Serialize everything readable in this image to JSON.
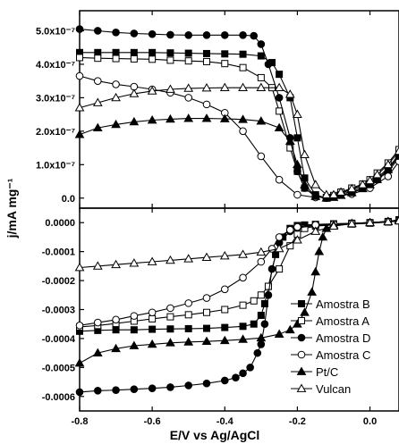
{
  "chart_data": [
    {
      "type": "line",
      "panel": "top",
      "xlabel": "E/V vs Ag/AgCl",
      "ylabel": "j/mA mg⁻¹",
      "xlim": [
        -0.8,
        0.08
      ],
      "ylim": [
        -3e-08,
        5.6e-07
      ],
      "y_ticks": [
        0,
        1e-07,
        2e-07,
        3e-07,
        4e-07,
        5e-07
      ],
      "y_tick_labels": [
        "0.0",
        "1.0x10⁻⁷",
        "2.0x10⁻⁷",
        "3.0x10⁻⁷",
        "4.0x10⁻⁷",
        "5.0x10⁻⁷"
      ],
      "series": [
        {
          "name": "Amostra B",
          "marker": "square-filled",
          "x": [
            -0.8,
            -0.75,
            -0.7,
            -0.65,
            -0.6,
            -0.55,
            -0.5,
            -0.45,
            -0.4,
            -0.35,
            -0.3,
            -0.27,
            -0.25,
            -0.22,
            -0.2,
            -0.18,
            -0.15,
            -0.12,
            -0.1,
            -0.08,
            -0.05,
            -0.02,
            0.0,
            0.02,
            0.05,
            0.08
          ],
          "y": [
            4.35e-07,
            4.35e-07,
            4.35e-07,
            4.35e-07,
            4.35e-07,
            4.34e-07,
            4.33e-07,
            4.32e-07,
            4.31e-07,
            4.3e-07,
            4.25e-07,
            4.05e-07,
            3.7e-07,
            3e-07,
            1.8e-07,
            6e-08,
            1e-08,
            0.0,
            5e-09,
            1.5e-08,
            2.5e-08,
            3.5e-08,
            4.5e-08,
            6e-08,
            9e-08,
            1.3e-07
          ]
        },
        {
          "name": "Amostra A",
          "marker": "square-open",
          "x": [
            -0.8,
            -0.75,
            -0.7,
            -0.65,
            -0.6,
            -0.55,
            -0.5,
            -0.45,
            -0.4,
            -0.35,
            -0.3,
            -0.27,
            -0.25,
            -0.22,
            -0.2,
            -0.18,
            -0.15,
            -0.12,
            -0.1,
            -0.08,
            -0.05,
            -0.02,
            0.0,
            0.02,
            0.05,
            0.08
          ],
          "y": [
            4.2e-07,
            4.18e-07,
            4.17e-07,
            4.16e-07,
            4.15e-07,
            4.12e-07,
            4.1e-07,
            4.08e-07,
            4.02e-07,
            3.9e-07,
            3.6e-07,
            3.3e-07,
            2.6e-07,
            1.5e-07,
            8e-08,
            3e-08,
            5e-09,
            2e-09,
            8e-09,
            1.8e-08,
            3e-08,
            4.2e-08,
            5.5e-08,
            7.5e-08,
            1.05e-07,
            1.45e-07
          ]
        },
        {
          "name": "Amostra D",
          "marker": "circle-filled",
          "x": [
            -0.8,
            -0.75,
            -0.7,
            -0.65,
            -0.6,
            -0.55,
            -0.5,
            -0.45,
            -0.4,
            -0.35,
            -0.32,
            -0.3,
            -0.28,
            -0.25,
            -0.22,
            -0.2,
            -0.18,
            -0.15,
            -0.12,
            -0.1,
            -0.08,
            -0.05,
            -0.02,
            0.0,
            0.02,
            0.05,
            0.08
          ],
          "y": [
            5.05e-07,
            5e-07,
            4.95e-07,
            4.92e-07,
            4.9e-07,
            4.88e-07,
            4.87e-07,
            4.87e-07,
            4.87e-07,
            4.87e-07,
            4.85e-07,
            4.6e-07,
            4e-07,
            3e-07,
            1.8e-07,
            8e-08,
            3e-08,
            5e-09,
            0.0,
            5e-09,
            1.2e-08,
            2e-08,
            3e-08,
            4e-08,
            5.5e-08,
            8e-08,
            1.2e-07
          ]
        },
        {
          "name": "Amostra C",
          "marker": "circle-open",
          "x": [
            -0.8,
            -0.75,
            -0.7,
            -0.65,
            -0.6,
            -0.55,
            -0.5,
            -0.45,
            -0.4,
            -0.35,
            -0.3,
            -0.25,
            -0.2,
            -0.15,
            -0.1,
            -0.05,
            0.0,
            0.05,
            0.08
          ],
          "y": [
            3.65e-07,
            3.5e-07,
            3.4e-07,
            3.33e-07,
            3.25e-07,
            3.15e-07,
            3e-07,
            2.8e-07,
            2.55e-07,
            2e-07,
            1.25e-07,
            5.5e-08,
            1e-08,
            2e-09,
            5e-09,
            1.2e-08,
            3e-08,
            6.5e-08,
            1.1e-07
          ]
        },
        {
          "name": "Pt/C",
          "marker": "triangle-filled",
          "x": [
            -0.8,
            -0.75,
            -0.7,
            -0.65,
            -0.6,
            -0.55,
            -0.5,
            -0.45,
            -0.4,
            -0.35,
            -0.3,
            -0.25,
            -0.22,
            -0.2,
            -0.18,
            -0.15,
            -0.12,
            -0.1,
            -0.08,
            -0.05,
            -0.02,
            0.0,
            0.02,
            0.05,
            0.08
          ],
          "y": [
            1.9e-07,
            2.1e-07,
            2.2e-07,
            2.28e-07,
            2.33e-07,
            2.36e-07,
            2.38e-07,
            2.38e-07,
            2.37e-07,
            2.35e-07,
            2.3e-07,
            2.1e-07,
            1.7e-07,
            1e-07,
            4e-08,
            5e-09,
            0.0,
            2e-09,
            8e-09,
            1.6e-08,
            2.8e-08,
            4e-08,
            5.5e-08,
            8.5e-08,
            1.25e-07
          ]
        },
        {
          "name": "Vulcan",
          "marker": "triangle-open",
          "x": [
            -0.8,
            -0.75,
            -0.7,
            -0.65,
            -0.6,
            -0.55,
            -0.5,
            -0.45,
            -0.4,
            -0.35,
            -0.3,
            -0.25,
            -0.22,
            -0.2,
            -0.18,
            -0.15,
            -0.12,
            -0.1,
            -0.08,
            -0.05,
            -0.02,
            0.0,
            0.02,
            0.05,
            0.08
          ],
          "y": [
            2.7e-07,
            2.85e-07,
            3e-07,
            3.12e-07,
            3.2e-07,
            3.25e-07,
            3.28e-07,
            3.29e-07,
            3.3e-07,
            3.3e-07,
            3.3e-07,
            3.3e-07,
            3.1e-07,
            2.5e-07,
            1.3e-07,
            4e-08,
            1e-08,
            1e-08,
            1.8e-08,
            2.8e-08,
            4e-08,
            5.2e-08,
            7e-08,
            1e-07,
            1.4e-07
          ]
        }
      ]
    },
    {
      "type": "line",
      "panel": "bottom",
      "xlabel": "E/V vs Ag/AgCl",
      "ylabel": "j/mA mg⁻¹",
      "xlim": [
        -0.8,
        0.08
      ],
      "ylim": [
        -0.00065,
        5e-05
      ],
      "x_ticks": [
        -0.8,
        -0.6,
        -0.4,
        -0.2,
        0.0
      ],
      "x_tick_labels": [
        "-0.8",
        "-0.6",
        "-0.4",
        "-0.2",
        "0.0"
      ],
      "y_ticks": [
        0,
        -0.0001,
        -0.0002,
        -0.0003,
        -0.0004,
        -0.0005,
        -0.0006
      ],
      "y_tick_labels": [
        "0.0000",
        "-0.0001",
        "-0.0002",
        "-0.0003",
        "-0.0004",
        "-0.0005",
        "-0.0006"
      ],
      "legend": "lower-right",
      "series": [
        {
          "name": "Amostra B",
          "marker": "square-filled",
          "x": [
            -0.8,
            -0.75,
            -0.7,
            -0.65,
            -0.6,
            -0.55,
            -0.5,
            -0.45,
            -0.4,
            -0.35,
            -0.32,
            -0.3,
            -0.29,
            -0.28,
            -0.26,
            -0.24,
            -0.22,
            -0.2,
            -0.18,
            -0.15,
            -0.1,
            -0.05,
            0.0,
            0.05,
            0.08
          ],
          "y": [
            -0.000375,
            -0.000372,
            -0.00037,
            -0.00037,
            -0.000368,
            -0.000367,
            -0.000366,
            -0.000365,
            -0.000362,
            -0.000358,
            -0.00035,
            -0.00032,
            -0.00028,
            -0.00022,
            -0.00011,
            -5e-05,
            -2e-05,
            -1e-05,
            -8e-06,
            -6e-06,
            -4e-06,
            -2e-06,
            0.0,
            4e-06,
            1e-05
          ]
        },
        {
          "name": "Amostra A",
          "marker": "square-open",
          "x": [
            -0.8,
            -0.75,
            -0.7,
            -0.65,
            -0.6,
            -0.55,
            -0.5,
            -0.45,
            -0.4,
            -0.35,
            -0.32,
            -0.3,
            -0.28,
            -0.25,
            -0.22,
            -0.2,
            -0.18,
            -0.15,
            -0.1,
            -0.05,
            0.0,
            0.05,
            0.08
          ],
          "y": [
            -0.00036,
            -0.000355,
            -0.000348,
            -0.00034,
            -0.000332,
            -0.000325,
            -0.000318,
            -0.00031,
            -0.0003,
            -0.000285,
            -0.00027,
            -0.00025,
            -0.00022,
            -0.00016,
            -8e-05,
            -4e-05,
            -2e-05,
            -1.2e-05,
            -8e-06,
            -5e-06,
            -2e-06,
            2e-06,
            6e-06
          ]
        },
        {
          "name": "Amostra D",
          "marker": "circle-filled",
          "x": [
            -0.8,
            -0.75,
            -0.7,
            -0.65,
            -0.6,
            -0.55,
            -0.5,
            -0.45,
            -0.4,
            -0.37,
            -0.35,
            -0.33,
            -0.31,
            -0.3,
            -0.29,
            -0.28,
            -0.27,
            -0.25,
            -0.22,
            -0.2,
            -0.15,
            -0.1,
            -0.05,
            0.0,
            0.05,
            0.08
          ],
          "y": [
            -0.000585,
            -0.00058,
            -0.000578,
            -0.000575,
            -0.000572,
            -0.000568,
            -0.000562,
            -0.000555,
            -0.000545,
            -0.000535,
            -0.00052,
            -0.0005,
            -0.00045,
            -0.00042,
            -0.00035,
            -0.00025,
            -0.00016,
            -7e-05,
            -3e-05,
            -1.8e-05,
            -1e-05,
            -6e-06,
            -3e-06,
            0.0,
            4e-06,
            8e-06
          ]
        },
        {
          "name": "Amostra C",
          "marker": "circle-open",
          "x": [
            -0.8,
            -0.75,
            -0.7,
            -0.65,
            -0.6,
            -0.55,
            -0.5,
            -0.45,
            -0.4,
            -0.35,
            -0.3,
            -0.27,
            -0.25,
            -0.22,
            -0.2,
            -0.15,
            -0.1,
            -0.05,
            0.0,
            0.05,
            0.08
          ],
          "y": [
            -0.000355,
            -0.000345,
            -0.000335,
            -0.000322,
            -0.00031,
            -0.000295,
            -0.000278,
            -0.00026,
            -0.00023,
            -0.00019,
            -0.000135,
            -9e-05,
            -5e-05,
            -2.5e-05,
            -1.5e-05,
            -8e-06,
            -5e-06,
            -2e-06,
            0.0,
            4e-06,
            8e-06
          ]
        },
        {
          "name": "Pt/C",
          "marker": "triangle-filled",
          "x": [
            -0.8,
            -0.75,
            -0.7,
            -0.65,
            -0.6,
            -0.55,
            -0.5,
            -0.45,
            -0.4,
            -0.35,
            -0.3,
            -0.25,
            -0.22,
            -0.2,
            -0.18,
            -0.16,
            -0.15,
            -0.14,
            -0.13,
            -0.12,
            -0.1,
            -0.05,
            0.0,
            0.05,
            0.08
          ],
          "y": [
            -0.000485,
            -0.00045,
            -0.000435,
            -0.000425,
            -0.00042,
            -0.000415,
            -0.000412,
            -0.00041,
            -0.000407,
            -0.000403,
            -0.000398,
            -0.000385,
            -0.00037,
            -0.00035,
            -0.00031,
            -0.00024,
            -0.00017,
            -0.0001,
            -5e-05,
            -2e-05,
            -8e-06,
            -3e-06,
            0.0,
            4e-06,
            1e-05
          ]
        },
        {
          "name": "Vulcan",
          "marker": "triangle-open",
          "x": [
            -0.8,
            -0.75,
            -0.7,
            -0.65,
            -0.6,
            -0.55,
            -0.5,
            -0.45,
            -0.4,
            -0.35,
            -0.3,
            -0.25,
            -0.2,
            -0.15,
            -0.1,
            -0.05,
            0.0,
            0.05,
            0.08
          ],
          "y": [
            -0.000155,
            -0.00015,
            -0.000145,
            -0.00014,
            -0.000135,
            -0.00013,
            -0.000125,
            -0.00012,
            -0.000115,
            -0.00011,
            -0.000102,
            -9e-05,
            -6e-05,
            -3e-05,
            -1.2e-05,
            -4e-06,
            0.0,
            3e-06,
            6e-06
          ]
        }
      ]
    }
  ]
}
